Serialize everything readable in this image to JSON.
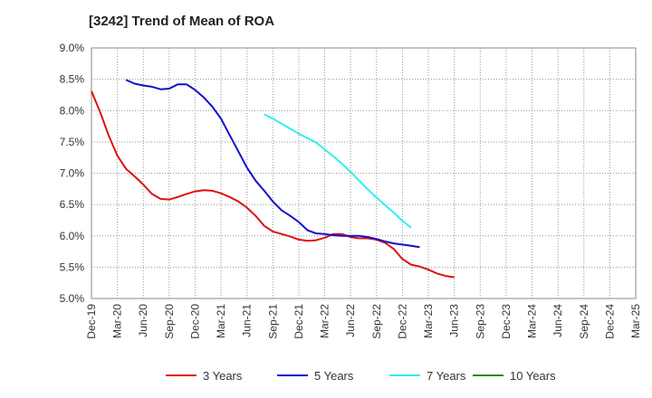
{
  "chart_data": {
    "type": "line",
    "title": "[3242]  Trend of Mean of ROA",
    "xlabel": "",
    "ylabel": "",
    "ylim": [
      5.0,
      9.0
    ],
    "y_ticks": [
      5.0,
      5.5,
      6.0,
      6.5,
      7.0,
      7.5,
      8.0,
      8.5,
      9.0
    ],
    "y_tick_labels": [
      "5.0%",
      "5.5%",
      "6.0%",
      "6.5%",
      "7.0%",
      "7.5%",
      "8.0%",
      "8.5%",
      "9.0%"
    ],
    "x_tick_labels": [
      "Dec-19",
      "Mar-20",
      "Jun-20",
      "Sep-20",
      "Dec-20",
      "Mar-21",
      "Jun-21",
      "Sep-21",
      "Dec-21",
      "Mar-22",
      "Jun-22",
      "Sep-22",
      "Dec-22",
      "Mar-23",
      "Jun-23",
      "Sep-23",
      "Dec-23",
      "Mar-24",
      "Jun-24",
      "Sep-24",
      "Dec-24",
      "Mar-25"
    ],
    "grid": true,
    "legend_position": "bottom",
    "series": [
      {
        "name": "3 Years",
        "color": "#dd1111",
        "start_index": 0,
        "values": [
          8.31,
          7.98,
          7.6,
          7.28,
          7.07,
          6.95,
          6.82,
          6.67,
          6.59,
          6.58,
          6.62,
          6.67,
          6.71,
          6.73,
          6.72,
          6.68,
          6.62,
          6.55,
          6.45,
          6.32,
          6.16,
          6.07,
          6.03,
          5.99,
          5.94,
          5.92,
          5.93,
          5.97,
          6.03,
          6.03,
          5.98,
          5.96,
          5.96,
          5.94,
          5.89,
          5.79,
          5.63,
          5.54,
          5.51,
          5.46,
          5.4,
          5.36,
          5.34
        ]
      },
      {
        "name": "5 Years",
        "color": "#1111cc",
        "start_index": 4,
        "values": [
          8.49,
          8.43,
          8.4,
          8.38,
          8.34,
          8.35,
          8.42,
          8.42,
          8.33,
          8.21,
          8.06,
          7.87,
          7.61,
          7.35,
          7.09,
          6.88,
          6.72,
          6.55,
          6.41,
          6.32,
          6.22,
          6.09,
          6.04,
          6.03,
          6.01,
          6.0,
          6.0,
          6.0,
          5.98,
          5.95,
          5.91,
          5.88,
          5.86,
          5.84,
          5.82
        ]
      },
      {
        "name": "7 Years",
        "color": "#33eeee",
        "start_index": 20,
        "values": [
          7.94,
          7.87,
          7.79,
          7.71,
          7.63,
          7.56,
          7.49,
          7.38,
          7.27,
          7.15,
          7.02,
          6.88,
          6.74,
          6.61,
          6.49,
          6.37,
          6.24,
          6.13
        ]
      },
      {
        "name": "10 Years",
        "color": "#228822",
        "start_index": 0,
        "values": []
      }
    ]
  }
}
